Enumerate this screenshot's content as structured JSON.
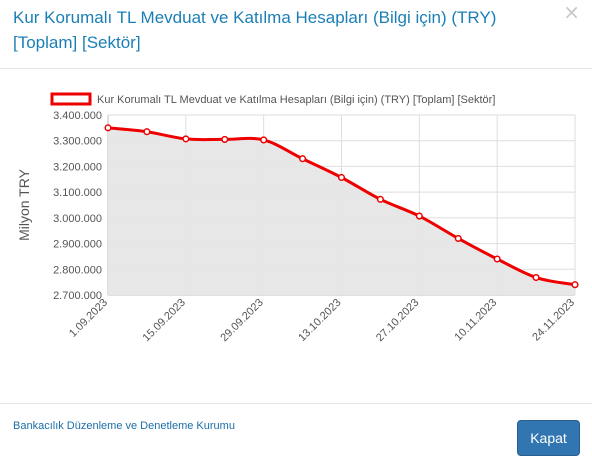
{
  "modal": {
    "title_line1": "Kur Korumalı TL Mevduat ve Katılma Hesapları (Bilgi için) (TRY)",
    "title_line2": "[Toplam] [Sektör]",
    "close_symbol": "×"
  },
  "footer": {
    "source_link": "Bankacılık Düzenleme ve Denetleme Kurumu",
    "close_label": "Kapat"
  },
  "colors": {
    "title": "#1b7fb6",
    "series_line": "#ee0000",
    "area_fill": "#e6e6e6",
    "button": "#3276b1"
  },
  "chart_data": {
    "type": "area",
    "title": "",
    "xlabel": "",
    "ylabel": "Milyon TRY",
    "ylim": [
      2700000,
      3400000
    ],
    "y_ticks": [
      "3.400.000",
      "3.300.000",
      "3.200.000",
      "3.100.000",
      "3.000.000",
      "2.900.000",
      "2.800.000",
      "2.700.000"
    ],
    "x_tick_labels": [
      "1.09.2023",
      "15.09.2023",
      "29.09.2023",
      "13.10.2023",
      "27.10.2023",
      "10.11.2023",
      "24.11.2023"
    ],
    "grid": true,
    "legend_position": "top",
    "series": [
      {
        "name": "Kur Korumalı TL Mevduat ve Katılma Hesapları (Bilgi için) (TRY) [Toplam] [Sektör]",
        "x": [
          "1.09.2023",
          "8.09.2023",
          "15.09.2023",
          "22.09.2023",
          "29.09.2023",
          "6.10.2023",
          "13.10.2023",
          "20.10.2023",
          "27.10.2023",
          "3.11.2023",
          "10.11.2023",
          "17.11.2023",
          "24.11.2023"
        ],
        "values": [
          3350000,
          3335000,
          3307000,
          3305000,
          3303000,
          3230000,
          3157000,
          3072000,
          3007000,
          2920000,
          2840000,
          2768000,
          2740000
        ]
      }
    ]
  }
}
